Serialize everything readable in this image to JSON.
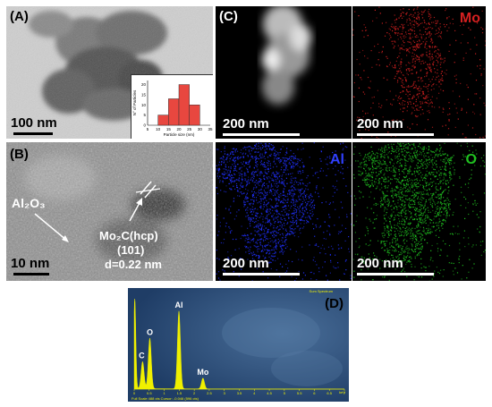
{
  "panels": {
    "A": {
      "label": "(A)",
      "scale": "100 nm",
      "histogram": {
        "type": "bar",
        "xlabel": "Particle size (nm)",
        "ylabel": "N° of Particles",
        "x_ticks": [
          "5",
          "10",
          "15",
          "20",
          "25",
          "30",
          "35"
        ],
        "y_ticks": [
          "0",
          "5",
          "10",
          "15",
          "20"
        ],
        "xlim": [
          5,
          35
        ],
        "ylim": [
          0,
          22
        ],
        "bins": [
          {
            "from": 10,
            "to": 15,
            "count": 5
          },
          {
            "from": 15,
            "to": 20,
            "count": 13
          },
          {
            "from": 20,
            "to": 25,
            "count": 20
          },
          {
            "from": 25,
            "to": 30,
            "count": 10
          }
        ],
        "bar_color": "#e8473f"
      }
    },
    "B": {
      "label": "(B)",
      "scale": "10 nm",
      "phase_left": "Al₂O₃",
      "phase_right_1": "Mo₂C(hcp)",
      "phase_right_2": "(101)",
      "phase_right_3": "d=0.22 nm"
    },
    "C": {
      "label": "(C)",
      "scale": "200 nm"
    },
    "Mo": {
      "element": "Mo",
      "scale": "200 nm",
      "color": "#d42020"
    },
    "Al": {
      "element": "Al",
      "scale": "200 nm",
      "color": "#2030ff"
    },
    "O": {
      "element": "O",
      "scale": "200 nm",
      "color": "#20c020"
    },
    "D": {
      "label": "(D)",
      "header": "Sum Spectrum",
      "footer_left": "Full Scale 488 cts Cursor: -0.046 (596 cts)",
      "footer_right": "keV",
      "x_ticks": [
        "0",
        "0.5",
        "1",
        "1.5",
        "2",
        "2.5",
        "3",
        "3.5",
        "4",
        "4.5",
        "5",
        "5.5",
        "6",
        "6.5",
        "7"
      ],
      "peaks": [
        {
          "label": "C",
          "energy": 0.28,
          "height": 0.3
        },
        {
          "label": "O",
          "energy": 0.52,
          "height": 0.56
        },
        {
          "label": "Al",
          "energy": 1.49,
          "height": 0.86
        },
        {
          "label": "Mo",
          "energy": 2.29,
          "height": 0.12
        }
      ]
    }
  }
}
